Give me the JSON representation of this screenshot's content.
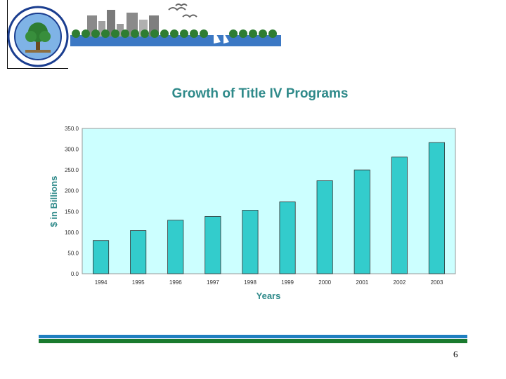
{
  "header": {
    "logo_icon": "department-of-education-seal",
    "banner_icon": "city-skyline-with-birds"
  },
  "colors": {
    "bar": "#33cccc",
    "plot_bg": "#ccffff",
    "title": "#2f8a8a",
    "footer_blue": "#1f7fc0",
    "footer_green": "#1a7a2e"
  },
  "chart_data": {
    "type": "bar",
    "title": "Growth of Title IV Programs",
    "xlabel": "Years",
    "ylabel": "$ in Billions",
    "categories": [
      "1994",
      "1995",
      "1996",
      "1997",
      "1998",
      "1999",
      "2000",
      "2001",
      "2002",
      "2003"
    ],
    "values": [
      80,
      104,
      129,
      138,
      153,
      173,
      224,
      250,
      281,
      316
    ],
    "ylim": [
      0,
      350
    ],
    "yticks": [
      "0.0",
      "50.0",
      "100.0",
      "150.0",
      "200.0",
      "250.0",
      "300.0",
      "350.0"
    ],
    "grid": false,
    "legend": "none"
  },
  "footer": {
    "page_number": "6"
  }
}
